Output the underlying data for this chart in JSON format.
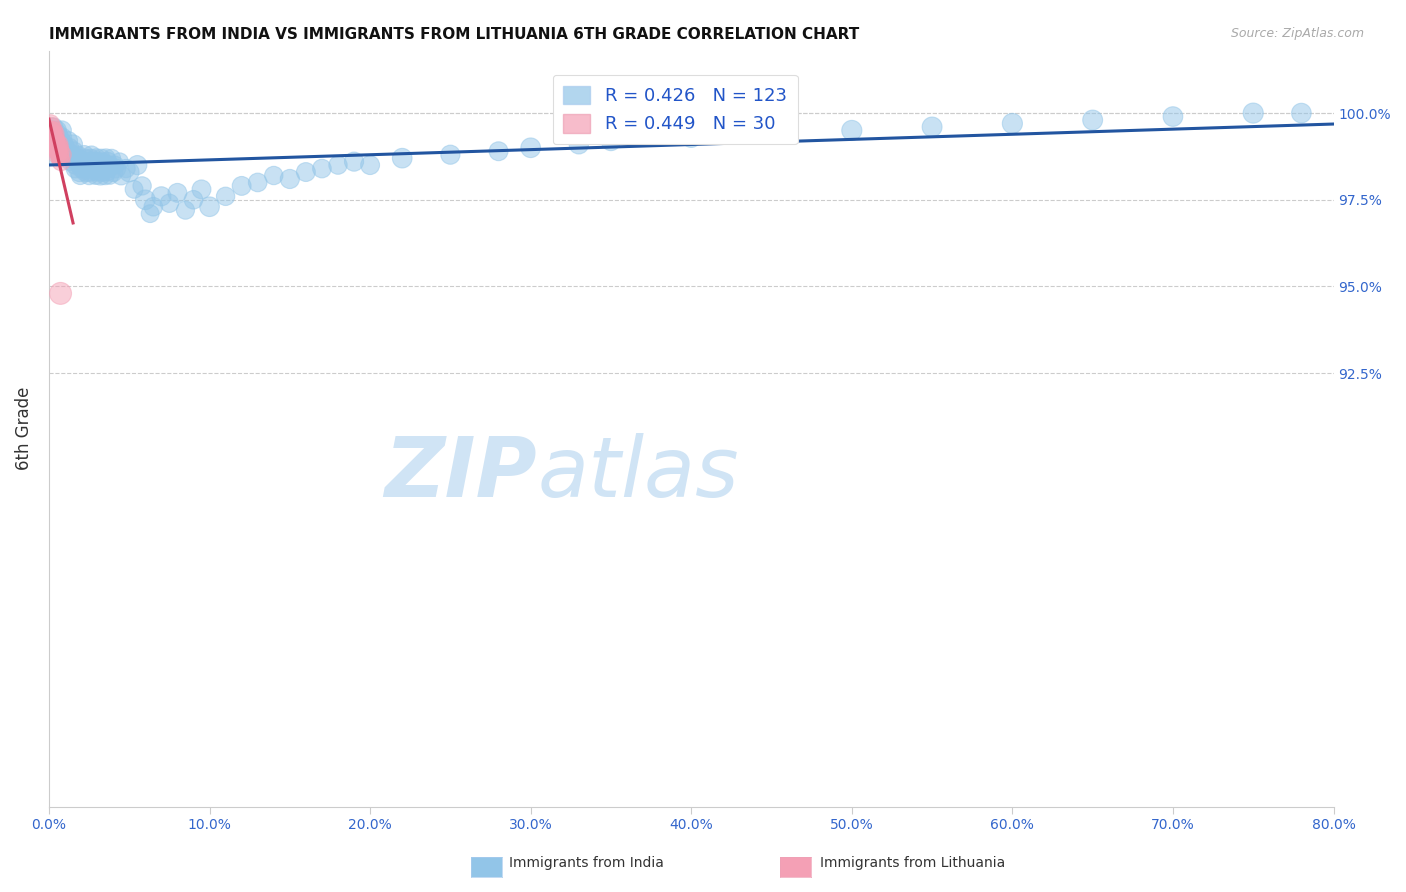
{
  "title": "IMMIGRANTS FROM INDIA VS IMMIGRANTS FROM LITHUANIA 6TH GRADE CORRELATION CHART",
  "source": "Source: ZipAtlas.com",
  "ylabel": "6th Grade",
  "india_R": 0.426,
  "india_N": 123,
  "lithuania_R": 0.449,
  "lithuania_N": 30,
  "india_color": "#92C5E8",
  "india_line_color": "#2255A0",
  "lithuania_color": "#F4A0B5",
  "lithuania_line_color": "#D04060",
  "legend_r_color": "#2255C8",
  "watermark_color": "#D0E4F5",
  "xmin": 0.0,
  "xmax": 80.0,
  "ymin": 80.0,
  "ymax": 101.8,
  "ytick_vals": [
    92.5,
    95.0,
    97.5,
    100.0
  ],
  "xtick_vals": [
    0,
    10,
    20,
    30,
    40,
    50,
    60,
    70,
    80
  ],
  "india_x": [
    0.1,
    0.2,
    0.15,
    0.05,
    0.3,
    0.25,
    0.4,
    0.35,
    0.5,
    0.45,
    0.6,
    0.55,
    0.7,
    0.65,
    0.8,
    0.75,
    0.9,
    0.85,
    1.0,
    0.95,
    1.1,
    1.05,
    1.2,
    1.15,
    1.3,
    1.25,
    1.4,
    1.35,
    1.5,
    1.45,
    1.6,
    1.55,
    1.7,
    1.65,
    1.8,
    1.75,
    1.9,
    1.85,
    2.0,
    1.95,
    2.1,
    2.05,
    2.2,
    2.15,
    2.3,
    2.25,
    2.4,
    2.35,
    2.5,
    2.45,
    2.6,
    2.55,
    2.7,
    2.65,
    2.8,
    2.75,
    2.9,
    2.85,
    3.0,
    2.95,
    3.1,
    3.05,
    3.2,
    3.15,
    3.3,
    3.25,
    3.4,
    3.35,
    3.5,
    3.45,
    3.6,
    3.55,
    3.7,
    3.65,
    3.8,
    3.75,
    4.0,
    3.9,
    4.2,
    4.1,
    4.5,
    4.4,
    5.0,
    4.8,
    5.5,
    5.3,
    6.0,
    5.8,
    6.5,
    6.3,
    7.0,
    7.5,
    8.0,
    8.5,
    9.0,
    9.5,
    10.0,
    11.0,
    12.0,
    13.0,
    14.0,
    15.0,
    16.0,
    17.0,
    18.0,
    19.0,
    20.0,
    22.0,
    25.0,
    28.0,
    30.0,
    33.0,
    35.0,
    40.0,
    45.0,
    50.0,
    55.0,
    60.0,
    65.0,
    70.0,
    75.0,
    78.0,
    0.08
  ],
  "india_y": [
    99.1,
    99.3,
    99.5,
    99.4,
    99.6,
    99.2,
    99.4,
    99.3,
    99.5,
    99.1,
    99.2,
    99.4,
    99.3,
    99.1,
    99.5,
    99.2,
    99.0,
    99.3,
    98.9,
    99.1,
    98.8,
    99.0,
    99.2,
    98.9,
    98.7,
    99.0,
    98.8,
    98.6,
    99.1,
    98.8,
    98.5,
    98.9,
    98.7,
    98.4,
    98.8,
    98.6,
    98.3,
    98.7,
    98.5,
    98.2,
    98.6,
    98.4,
    98.8,
    98.5,
    98.3,
    98.7,
    98.4,
    98.6,
    98.2,
    98.5,
    98.7,
    98.3,
    98.5,
    98.8,
    98.4,
    98.6,
    98.2,
    98.5,
    98.3,
    98.7,
    98.4,
    98.6,
    98.2,
    98.5,
    98.3,
    98.7,
    98.4,
    98.6,
    98.2,
    98.5,
    98.3,
    98.7,
    98.4,
    98.6,
    98.2,
    98.5,
    98.3,
    98.7,
    98.4,
    98.5,
    98.2,
    98.6,
    98.3,
    98.4,
    98.5,
    97.8,
    97.5,
    97.9,
    97.3,
    97.1,
    97.6,
    97.4,
    97.7,
    97.2,
    97.5,
    97.8,
    97.3,
    97.6,
    97.9,
    98.0,
    98.2,
    98.1,
    98.3,
    98.4,
    98.5,
    98.6,
    98.5,
    98.7,
    98.8,
    98.9,
    99.0,
    99.1,
    99.2,
    99.3,
    99.4,
    99.5,
    99.6,
    99.7,
    99.8,
    99.9,
    100.0,
    100.0,
    98.8
  ],
  "india_sizes": [
    180,
    160,
    200,
    150,
    170,
    190,
    160,
    175,
    185,
    165,
    170,
    180,
    160,
    175,
    190,
    165,
    180,
    170,
    160,
    175,
    185,
    170,
    180,
    165,
    175,
    190,
    160,
    170,
    185,
    175,
    165,
    180,
    170,
    185,
    160,
    175,
    190,
    165,
    180,
    170,
    160,
    185,
    175,
    165,
    190,
    170,
    180,
    160,
    175,
    185,
    165,
    180,
    170,
    160,
    175,
    190,
    165,
    180,
    170,
    185,
    160,
    175,
    190,
    165,
    180,
    170,
    185,
    160,
    175,
    190,
    165,
    180,
    170,
    185,
    160,
    175,
    190,
    165,
    180,
    170,
    185,
    160,
    200,
    175,
    190,
    165,
    200,
    175,
    180,
    165,
    190,
    175,
    185,
    170,
    180,
    185,
    200,
    175,
    185,
    180,
    175,
    190,
    185,
    180,
    175,
    190,
    185,
    200,
    190,
    185,
    200,
    195,
    200,
    210,
    200,
    210,
    205,
    210,
    205,
    200,
    210,
    200,
    175
  ],
  "lithuania_x": [
    0.05,
    0.1,
    0.08,
    0.15,
    0.12,
    0.2,
    0.18,
    0.25,
    0.22,
    0.3,
    0.28,
    0.35,
    0.32,
    0.4,
    0.38,
    0.45,
    0.42,
    0.5,
    0.48,
    0.55,
    0.52,
    0.6,
    0.58,
    0.65,
    0.62,
    0.7,
    0.68,
    0.75,
    0.72,
    0.8
  ],
  "lithuania_y": [
    99.5,
    99.7,
    99.3,
    99.6,
    99.4,
    99.5,
    99.2,
    99.4,
    99.3,
    99.5,
    99.1,
    99.3,
    99.0,
    99.2,
    99.4,
    99.0,
    99.2,
    99.1,
    98.9,
    99.0,
    98.8,
    99.1,
    98.9,
    98.8,
    99.0,
    98.7,
    98.9,
    98.6,
    94.8,
    98.8
  ],
  "lithuania_sizes": [
    180,
    160,
    170,
    185,
    175,
    165,
    190,
    170,
    180,
    160,
    175,
    185,
    165,
    180,
    170,
    160,
    175,
    190,
    165,
    180,
    170,
    185,
    160,
    175,
    190,
    165,
    180,
    170,
    250,
    185
  ]
}
